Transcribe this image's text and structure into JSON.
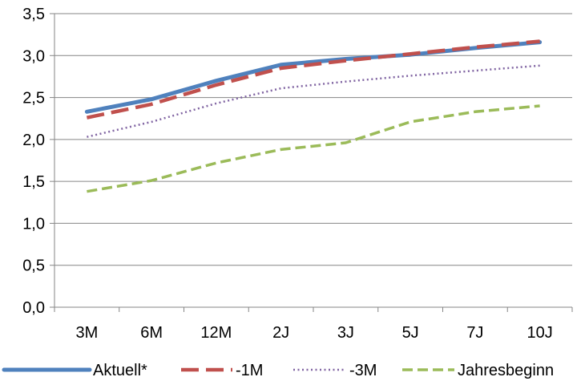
{
  "chart_data": {
    "type": "line",
    "title": "",
    "xlabel": "",
    "ylabel": "",
    "categories": [
      "3M",
      "6M",
      "12M",
      "2J",
      "3J",
      "5J",
      "7J",
      "10J"
    ],
    "ylim": [
      0,
      3.5
    ],
    "yticks": [
      "0,0",
      "0,5",
      "1,0",
      "1,5",
      "2,0",
      "2,5",
      "3,0",
      "3,5"
    ],
    "grid": true,
    "legend_position": "bottom",
    "series": [
      {
        "name": "Aktuell*",
        "values": [
          2.33,
          2.48,
          2.7,
          2.89,
          2.96,
          3.01,
          3.09,
          3.16
        ],
        "color": "#4F81BD",
        "style": "solid"
      },
      {
        "name": "-1M",
        "values": [
          2.26,
          2.42,
          2.65,
          2.85,
          2.94,
          3.02,
          3.1,
          3.17
        ],
        "color": "#C0504D",
        "style": "dashed"
      },
      {
        "name": "-3M",
        "values": [
          2.03,
          2.21,
          2.43,
          2.61,
          2.69,
          2.76,
          2.82,
          2.88
        ],
        "color": "#8064A2",
        "style": "dotted"
      },
      {
        "name": "Jahresbeginn",
        "values": [
          1.38,
          1.51,
          1.72,
          1.88,
          1.96,
          2.21,
          2.33,
          2.4
        ],
        "color": "#9BBB59",
        "style": "dashed-short"
      }
    ]
  }
}
